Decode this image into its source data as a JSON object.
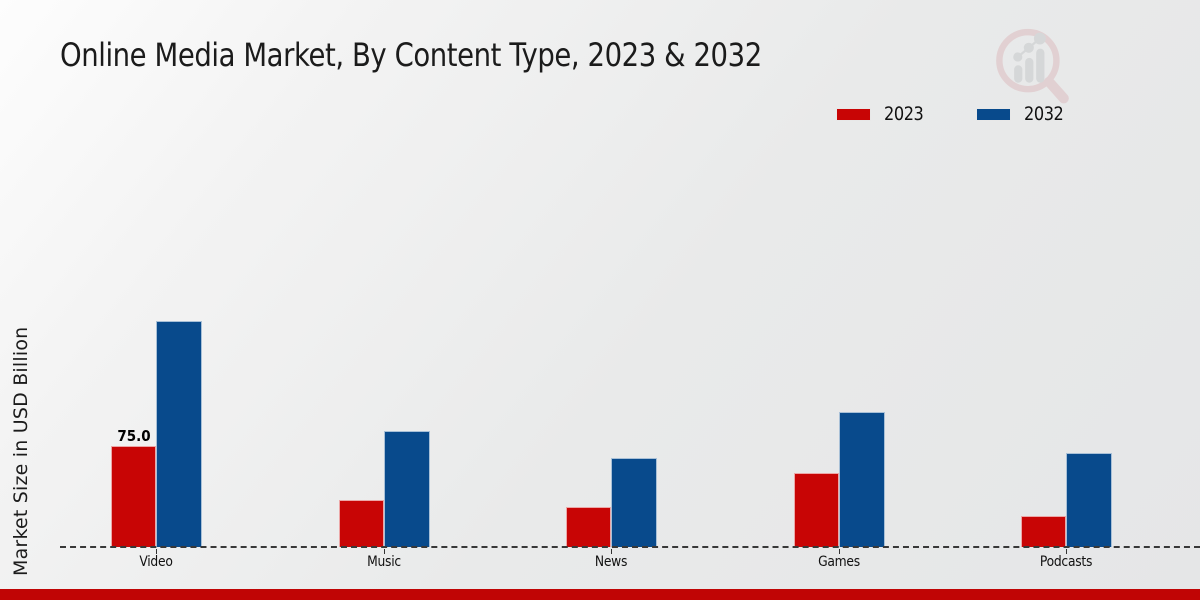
{
  "title": "Online Media Market, By Content Type, 2023 & 2032",
  "y_axis_label": "Market Size in USD Billion",
  "legend": {
    "items": [
      {
        "label": "2023",
        "color": "#c80505"
      },
      {
        "label": "2032",
        "color": "#084a8c"
      }
    ]
  },
  "chart_data": {
    "type": "bar",
    "title": "Online Media Market, By Content Type, 2023 & 2032",
    "xlabel": "",
    "ylabel": "Market Size in USD Billion",
    "categories": [
      "Video",
      "Music",
      "News",
      "Games",
      "Podcasts"
    ],
    "series": [
      {
        "name": "2023",
        "color": "#c80505",
        "values": [
          75,
          35,
          30,
          55,
          23
        ]
      },
      {
        "name": "2032",
        "color": "#084a8c",
        "values": [
          168,
          86,
          66,
          100,
          70
        ]
      }
    ],
    "ylim": [
      0,
      345
    ],
    "grid": false,
    "legend_position": "top-right",
    "baseline_style": "dashed",
    "data_labels": [
      {
        "series": "2023",
        "category": "Video",
        "text": "75.0"
      }
    ]
  },
  "colors": {
    "series_2023": "#c80505",
    "series_2032": "#084a8c",
    "baseline": "#383838",
    "footer_strip": "#c00505",
    "title_text": "#1b1b1b"
  },
  "branding": {
    "logo": "magnifier-bar-chart-watermark"
  }
}
